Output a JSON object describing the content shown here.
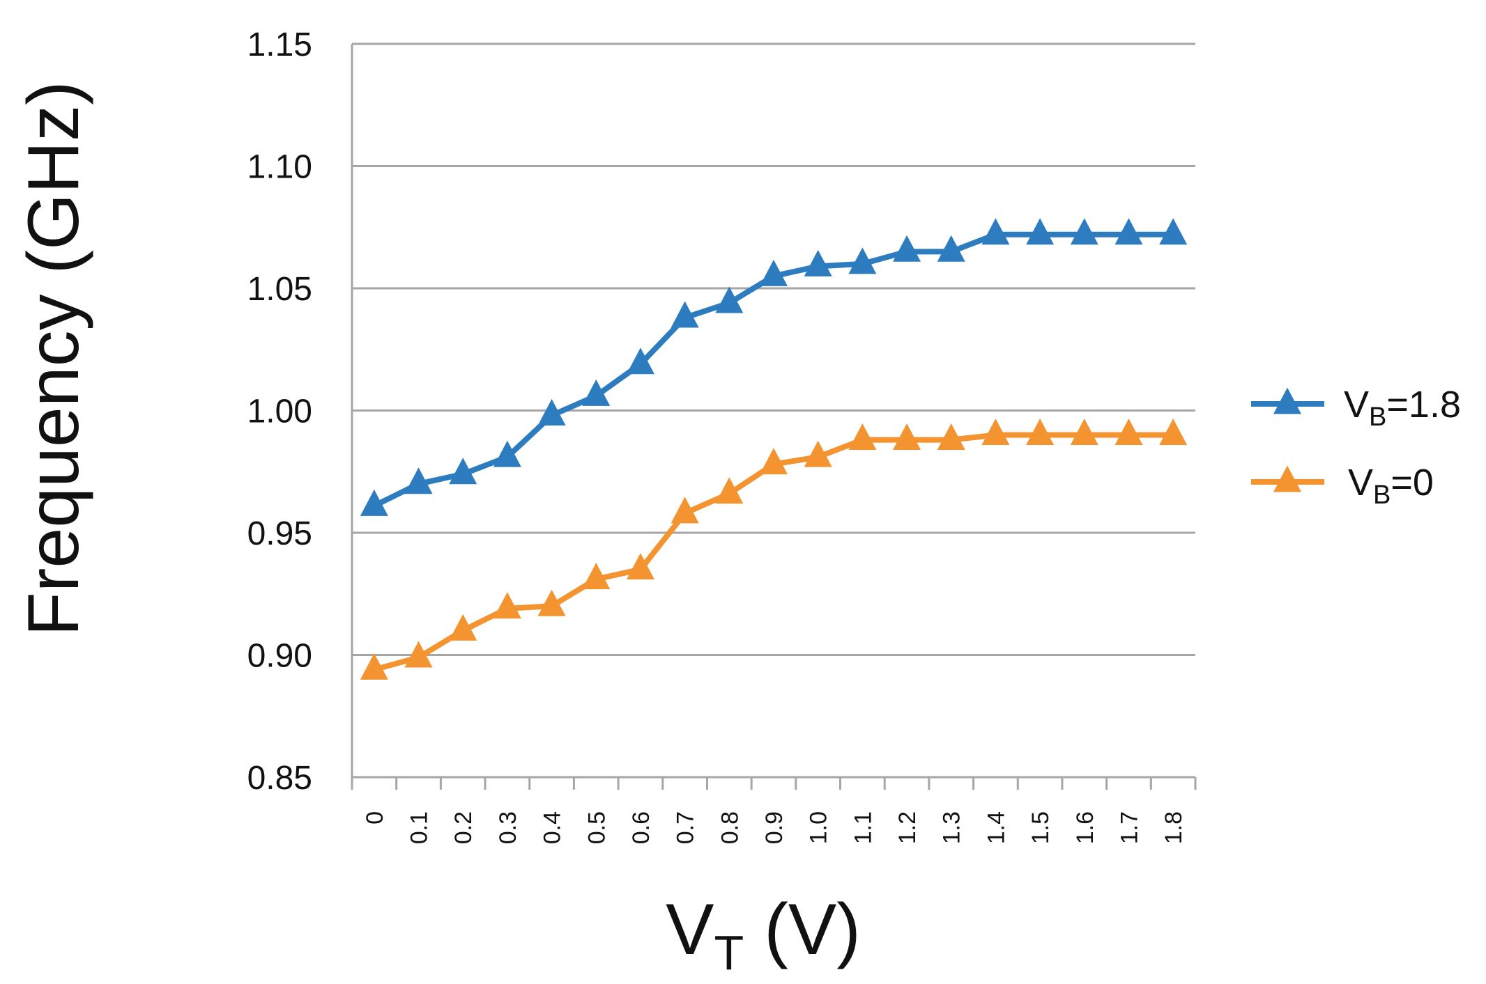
{
  "chart_data": {
    "type": "line",
    "title": "",
    "xlabel": {
      "main": "V",
      "sub": "T",
      "unit": " (V)"
    },
    "ylabel": "Frequency (GHz)",
    "categories": [
      "0",
      "0.1",
      "0.2",
      "0.3",
      "0.4",
      "0.5",
      "0.6",
      "0.7",
      "0.8",
      "0.9",
      "1.0",
      "1.1",
      "1.2",
      "1.3",
      "1.4",
      "1.5",
      "1.6",
      "1.7",
      "1.8"
    ],
    "ylim": [
      0.85,
      1.15
    ],
    "yticks": [
      "0.85",
      "0.90",
      "0.95",
      "1.00",
      "1.05",
      "1.10",
      "1.15"
    ],
    "grid": true,
    "legend_position": "right",
    "marker": "triangle",
    "series": [
      {
        "name": "VB=1.8",
        "legend": {
          "main": "V",
          "sub": "B",
          "rest": "=1.8"
        },
        "color": "#2E7CC0",
        "values": [
          0.961,
          0.97,
          0.974,
          0.981,
          0.998,
          1.006,
          1.019,
          1.038,
          1.044,
          1.055,
          1.059,
          1.06,
          1.065,
          1.065,
          1.072,
          1.072,
          1.072,
          1.072,
          1.072
        ]
      },
      {
        "name": "VB=0",
        "legend": {
          "main": "V",
          "sub": "B",
          "rest": "=0"
        },
        "color": "#F39431",
        "values": [
          0.894,
          0.899,
          0.91,
          0.919,
          0.92,
          0.931,
          0.935,
          0.958,
          0.966,
          0.978,
          0.981,
          0.988,
          0.988,
          0.988,
          0.99,
          0.99,
          0.99,
          0.99,
          0.99
        ]
      }
    ]
  }
}
